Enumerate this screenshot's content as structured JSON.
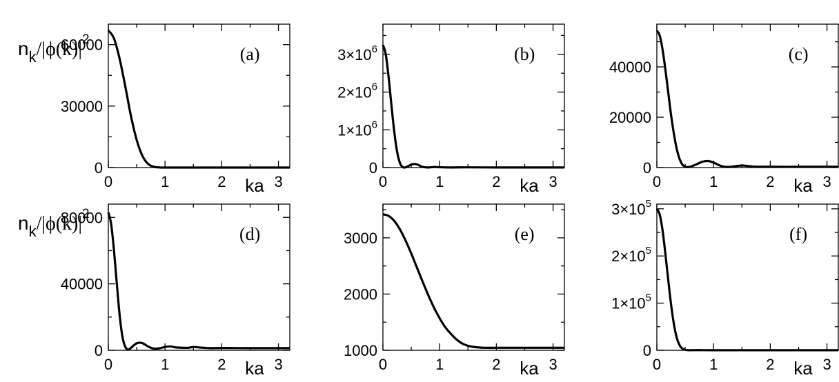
{
  "ylabel": {
    "n": "n",
    "sub": "k",
    "rest": "/|ϕ(k)|",
    "sup": "2"
  },
  "chart_data": [
    {
      "type": "line",
      "panel_label": "(a)",
      "xlabel": "ka",
      "xlim": [
        0,
        3.2
      ],
      "ylim": [
        0,
        70000
      ],
      "x_ticks": [
        0,
        1,
        2,
        3
      ],
      "y_ticks": [
        {
          "value": 0,
          "label": "0"
        },
        {
          "value": 30000,
          "label": "30000"
        },
        {
          "value": 60000,
          "label": "60000"
        }
      ],
      "series": [
        {
          "x": [
            0,
            0.1,
            0.2,
            0.3,
            0.4,
            0.5,
            0.6,
            0.7,
            0.8,
            0.9,
            1.0,
            1.5,
            2.0,
            2.5,
            3.0,
            3.2
          ],
          "y": [
            67000,
            63000,
            53000,
            39500,
            25000,
            13500,
            5800,
            1800,
            400,
            60,
            0,
            0,
            0,
            0,
            0,
            0
          ]
        }
      ]
    },
    {
      "type": "line",
      "panel_label": "(b)",
      "xlabel": "ka",
      "xlim": [
        0,
        3.2
      ],
      "ylim": [
        0,
        3800000
      ],
      "x_ticks": [
        0,
        1,
        2,
        3
      ],
      "y_ticks": [
        {
          "value": 0,
          "label": "0"
        },
        {
          "value": 1000000,
          "label": "1×10",
          "exp": "6"
        },
        {
          "value": 2000000,
          "label": "2×10",
          "exp": "6"
        },
        {
          "value": 3000000,
          "label": "3×10",
          "exp": "6"
        }
      ],
      "series": [
        {
          "x": [
            0,
            0.05,
            0.1,
            0.15,
            0.2,
            0.25,
            0.3,
            0.35,
            0.4,
            0.45,
            0.5,
            0.55,
            0.6,
            0.65,
            0.7,
            0.8,
            0.9,
            1.0,
            1.2,
            1.5,
            2.0,
            2.5,
            3.0,
            3.2
          ],
          "y": [
            3250000,
            3000000,
            2400000,
            1650000,
            950000,
            420000,
            120000,
            10000,
            5000,
            40000,
            80000,
            95000,
            85000,
            50000,
            18000,
            2000,
            15000,
            8000,
            3000,
            6000,
            2000,
            3000,
            2000,
            2000
          ]
        }
      ]
    },
    {
      "type": "line",
      "panel_label": "(c)",
      "xlabel": "ka",
      "xlim": [
        0,
        3.2
      ],
      "ylim": [
        0,
        57000
      ],
      "x_ticks": [
        0,
        1,
        2,
        3
      ],
      "y_ticks": [
        {
          "value": 0,
          "label": "0"
        },
        {
          "value": 20000,
          "label": "20000"
        },
        {
          "value": 40000,
          "label": "40000"
        }
      ],
      "series": [
        {
          "x": [
            0,
            0.05,
            0.1,
            0.15,
            0.2,
            0.25,
            0.3,
            0.35,
            0.4,
            0.45,
            0.5,
            0.55,
            0.6,
            0.7,
            0.8,
            0.9,
            1.0,
            1.1,
            1.2,
            1.3,
            1.5,
            1.7,
            2.0,
            2.5,
            3.0,
            3.2
          ],
          "y": [
            54500,
            52500,
            47000,
            39000,
            30000,
            21000,
            13500,
            7500,
            3500,
            1200,
            300,
            200,
            400,
            1300,
            2300,
            2600,
            2000,
            900,
            300,
            300,
            800,
            400,
            300,
            300,
            300,
            300
          ]
        }
      ]
    },
    {
      "type": "line",
      "panel_label": "(d)",
      "xlabel": "ka",
      "xlim": [
        0,
        3.2
      ],
      "ylim": [
        0,
        88000
      ],
      "x_ticks": [
        0,
        1,
        2,
        3
      ],
      "y_ticks": [
        {
          "value": 0,
          "label": "0"
        },
        {
          "value": 40000,
          "label": "40000"
        },
        {
          "value": 80000,
          "label": "80000"
        }
      ],
      "series": [
        {
          "x": [
            0,
            0.05,
            0.1,
            0.15,
            0.2,
            0.25,
            0.3,
            0.35,
            0.4,
            0.45,
            0.5,
            0.55,
            0.6,
            0.65,
            0.7,
            0.8,
            0.9,
            1.0,
            1.1,
            1.2,
            1.4,
            1.5,
            1.6,
            1.8,
            2.0,
            2.5,
            3.0,
            3.2
          ],
          "y": [
            83000,
            76000,
            60000,
            40000,
            21000,
            8000,
            2000,
            400,
            1500,
            3000,
            4200,
            4600,
            4300,
            3400,
            2300,
            1000,
            1200,
            2000,
            2300,
            1700,
            1500,
            2000,
            1700,
            1300,
            1400,
            1300,
            1300,
            1300
          ]
        }
      ]
    },
    {
      "type": "line",
      "panel_label": "(e)",
      "xlabel": "ka",
      "xlim": [
        0,
        3.2
      ],
      "ylim": [
        1000,
        3600
      ],
      "x_ticks": [
        0,
        1,
        2,
        3
      ],
      "y_ticks": [
        {
          "value": 1000,
          "label": "1000"
        },
        {
          "value": 2000,
          "label": "2000"
        },
        {
          "value": 3000,
          "label": "3000"
        }
      ],
      "series": [
        {
          "x": [
            0,
            0.1,
            0.2,
            0.3,
            0.4,
            0.5,
            0.6,
            0.7,
            0.8,
            0.9,
            1.0,
            1.1,
            1.2,
            1.3,
            1.4,
            1.5,
            1.6,
            1.7,
            1.8,
            2.0,
            2.5,
            3.0,
            3.2
          ],
          "y": [
            3420,
            3390,
            3300,
            3150,
            2950,
            2720,
            2470,
            2220,
            1980,
            1760,
            1570,
            1410,
            1290,
            1190,
            1120,
            1080,
            1060,
            1050,
            1045,
            1045,
            1045,
            1045,
            1045
          ]
        }
      ]
    },
    {
      "type": "line",
      "panel_label": "(f)",
      "xlabel": "ka",
      "xlim": [
        0,
        3.2
      ],
      "ylim": [
        0,
        310000
      ],
      "x_ticks": [
        0,
        1,
        2,
        3
      ],
      "y_ticks": [
        {
          "value": 0,
          "label": "0"
        },
        {
          "value": 100000,
          "label": "1×10",
          "exp": "5"
        },
        {
          "value": 200000,
          "label": "2×10",
          "exp": "5"
        },
        {
          "value": 300000,
          "label": "3×10",
          "exp": "5"
        }
      ],
      "series": [
        {
          "x": [
            0,
            0.05,
            0.1,
            0.15,
            0.2,
            0.25,
            0.3,
            0.35,
            0.4,
            0.45,
            0.5,
            0.55,
            0.6,
            0.7,
            0.8,
            1.0,
            1.5,
            2.0,
            2.5,
            3.0,
            3.2
          ],
          "y": [
            300000,
            288000,
            255000,
            205000,
            150000,
            98000,
            56000,
            27000,
            11000,
            3500,
            900,
            300,
            200,
            400,
            300,
            200,
            200,
            200,
            200,
            200,
            200
          ]
        }
      ]
    }
  ]
}
